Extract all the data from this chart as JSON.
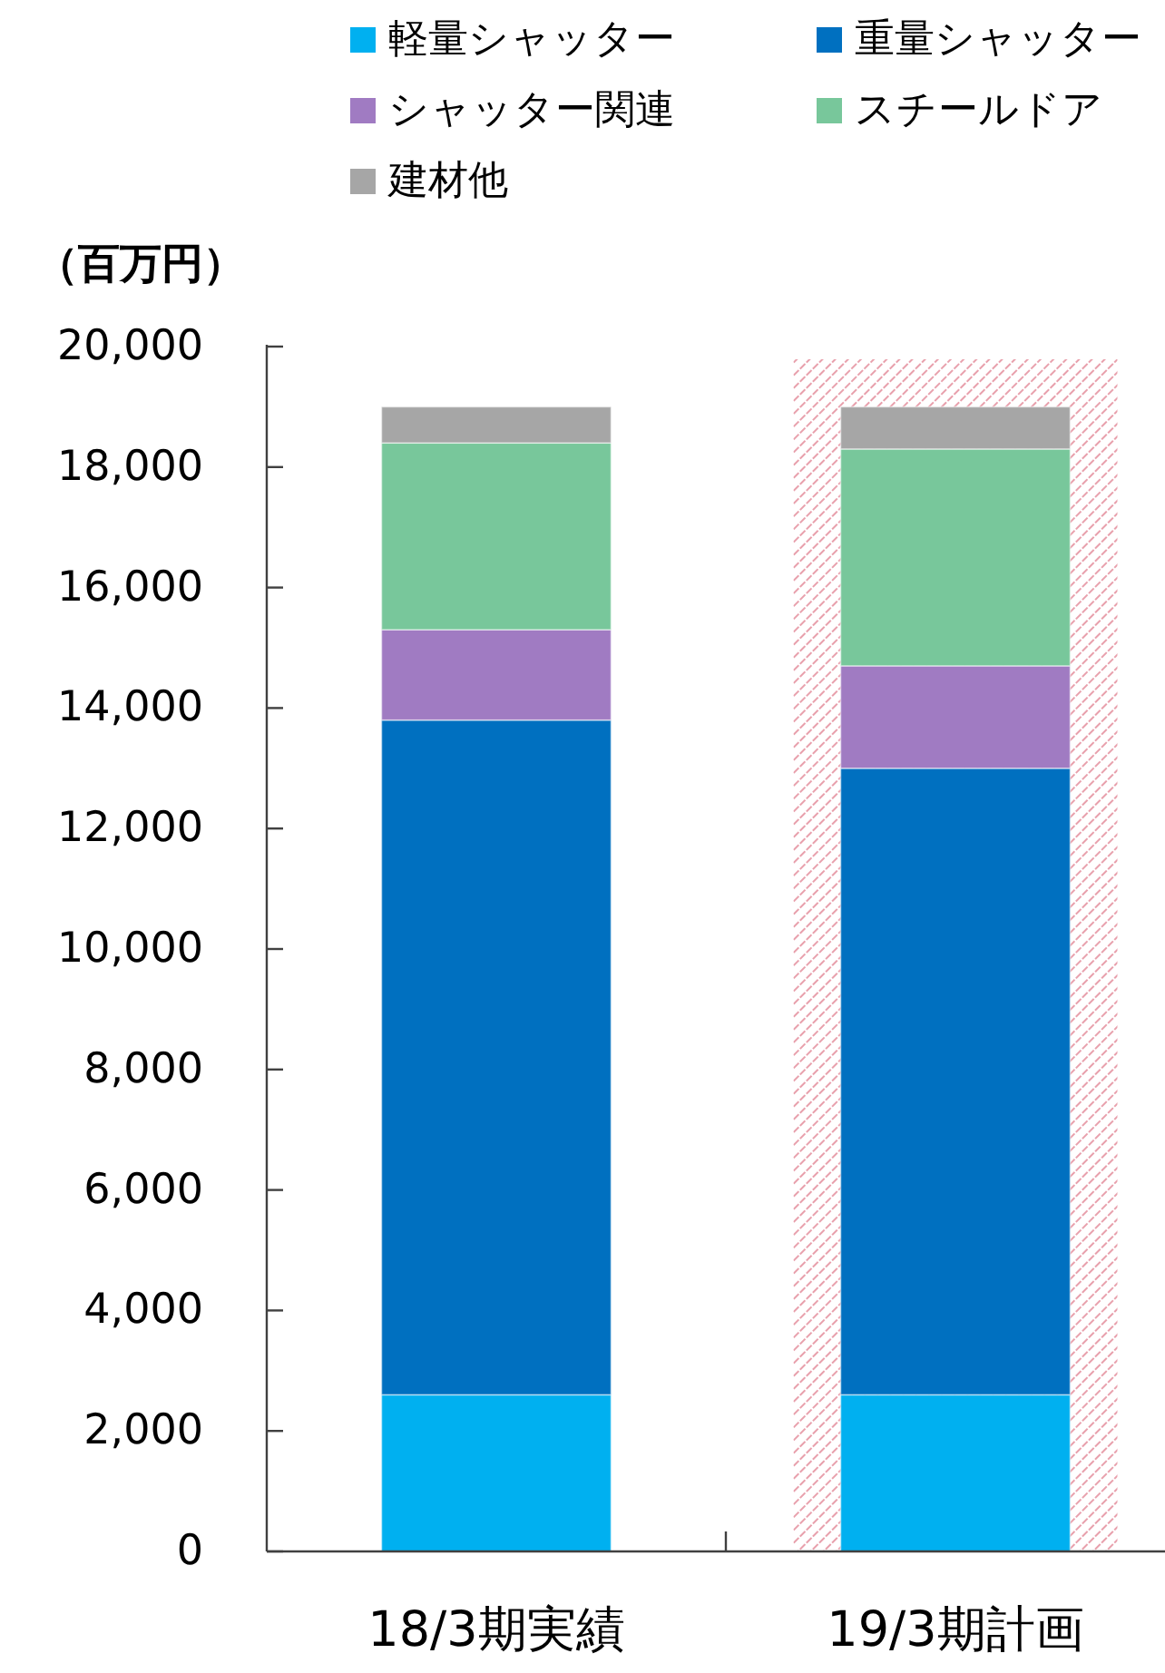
{
  "chart_data": {
    "type": "bar",
    "stacked": true,
    "ylabel": "（百万円）",
    "categories": [
      "18/3期実績",
      "19/3期計画"
    ],
    "series": [
      {
        "name": "軽量シャッター",
        "color": "#00b0f0",
        "values": [
          2600,
          2600
        ]
      },
      {
        "name": "重量シャッター",
        "color": "#0070c0",
        "values": [
          11200,
          10400
        ]
      },
      {
        "name": "シャッター関連",
        "color": "#a07bc2",
        "values": [
          1500,
          1700
        ]
      },
      {
        "name": "スチールドア",
        "color": "#78c79b",
        "values": [
          3100,
          3600
        ]
      },
      {
        "name": "建材他",
        "color": "#a6a6a6",
        "values": [
          600,
          700
        ]
      }
    ],
    "ylim": [
      0,
      20000
    ],
    "yticks": [
      {
        "value": 0,
        "label": "0"
      },
      {
        "value": 2000,
        "label": "2,000"
      },
      {
        "value": 4000,
        "label": "4,000"
      },
      {
        "value": 6000,
        "label": "6,000"
      },
      {
        "value": 8000,
        "label": "8,000"
      },
      {
        "value": 10000,
        "label": "10,000"
      },
      {
        "value": 12000,
        "label": "12,000"
      },
      {
        "value": 14000,
        "label": "14,000"
      },
      {
        "value": 16000,
        "label": "16,000"
      },
      {
        "value": 18000,
        "label": "18,000"
      },
      {
        "value": 20000,
        "label": "20,000"
      }
    ],
    "bands": [
      {
        "axis": "x",
        "from": "19/3期計画",
        "to": "19/3期計画",
        "color": "#e8a0ac"
      }
    ],
    "legend": "top",
    "grid": false
  }
}
